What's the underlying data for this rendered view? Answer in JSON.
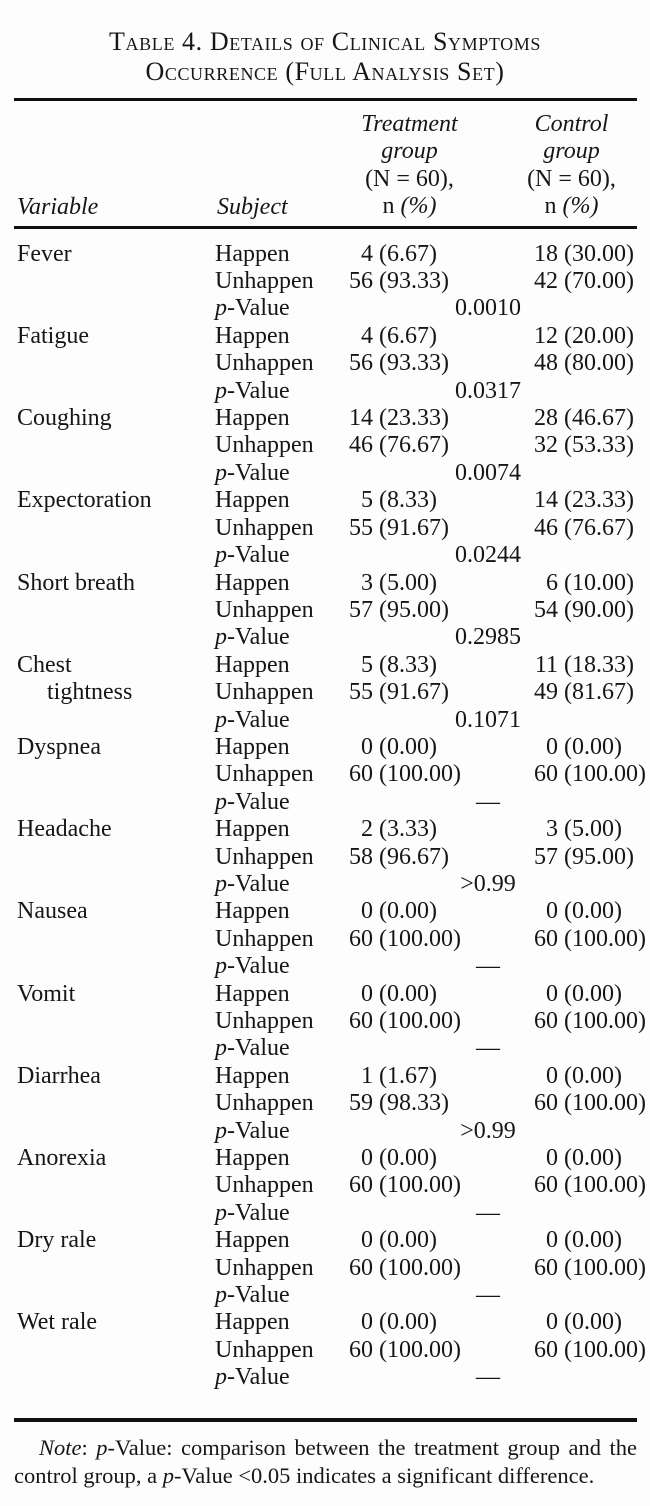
{
  "title": {
    "line1": "Table 4. Details of Clinical Symptoms",
    "line2": "Occurrence (Full Analysis Set)"
  },
  "columns": {
    "variable": "Variable",
    "subject": "Subject",
    "treatment": {
      "lines": [
        "Treatment",
        "group",
        "(N = 60),",
        "n (%)"
      ]
    },
    "control": {
      "lines": [
        "Control",
        "group",
        "(N = 60),",
        "n (%)"
      ]
    }
  },
  "subject_labels": {
    "happen": "Happen",
    "unhappen": "Unhappen",
    "p_value": "p-Value"
  },
  "rows": [
    {
      "name": [
        "Fever"
      ],
      "happen": {
        "treatment": [
          "4",
          "(6.67)"
        ],
        "control": [
          "18",
          "(30.00)"
        ]
      },
      "unhappen": {
        "treatment": [
          "56",
          "(93.33)"
        ],
        "control": [
          "42",
          "(70.00)"
        ]
      },
      "p_value": "0.0010"
    },
    {
      "name": [
        "Fatigue"
      ],
      "happen": {
        "treatment": [
          "4",
          "(6.67)"
        ],
        "control": [
          "12",
          "(20.00)"
        ]
      },
      "unhappen": {
        "treatment": [
          "56",
          "(93.33)"
        ],
        "control": [
          "48",
          "(80.00)"
        ]
      },
      "p_value": "0.0317"
    },
    {
      "name": [
        "Coughing"
      ],
      "happen": {
        "treatment": [
          "14",
          "(23.33)"
        ],
        "control": [
          "28",
          "(46.67)"
        ]
      },
      "unhappen": {
        "treatment": [
          "46",
          "(76.67)"
        ],
        "control": [
          "32",
          "(53.33)"
        ]
      },
      "p_value": "0.0074"
    },
    {
      "name": [
        "Expectoration"
      ],
      "happen": {
        "treatment": [
          "5",
          "(8.33)"
        ],
        "control": [
          "14",
          "(23.33)"
        ]
      },
      "unhappen": {
        "treatment": [
          "55",
          "(91.67)"
        ],
        "control": [
          "46",
          "(76.67)"
        ]
      },
      "p_value": "0.0244"
    },
    {
      "name": [
        "Short breath"
      ],
      "happen": {
        "treatment": [
          "3",
          "(5.00)"
        ],
        "control": [
          "6",
          "(10.00)"
        ]
      },
      "unhappen": {
        "treatment": [
          "57",
          "(95.00)"
        ],
        "control": [
          "54",
          "(90.00)"
        ]
      },
      "p_value": "0.2985"
    },
    {
      "name": [
        "Chest",
        "tightness"
      ],
      "happen": {
        "treatment": [
          "5",
          "(8.33)"
        ],
        "control": [
          "11",
          "(18.33)"
        ]
      },
      "unhappen": {
        "treatment": [
          "55",
          "(91.67)"
        ],
        "control": [
          "49",
          "(81.67)"
        ]
      },
      "p_value": "0.1071"
    },
    {
      "name": [
        "Dyspnea"
      ],
      "happen": {
        "treatment": [
          "0",
          "(0.00)"
        ],
        "control": [
          "0",
          "(0.00)"
        ]
      },
      "unhappen": {
        "treatment": [
          "60",
          "(100.00)"
        ],
        "control": [
          "60",
          "(100.00)"
        ]
      },
      "p_value": "—"
    },
    {
      "name": [
        "Headache"
      ],
      "happen": {
        "treatment": [
          "2",
          "(3.33)"
        ],
        "control": [
          "3",
          "(5.00)"
        ]
      },
      "unhappen": {
        "treatment": [
          "58",
          "(96.67)"
        ],
        "control": [
          "57",
          "(95.00)"
        ]
      },
      "p_value": ">0.99"
    },
    {
      "name": [
        "Nausea"
      ],
      "happen": {
        "treatment": [
          "0",
          "(0.00)"
        ],
        "control": [
          "0",
          "(0.00)"
        ]
      },
      "unhappen": {
        "treatment": [
          "60",
          "(100.00)"
        ],
        "control": [
          "60",
          "(100.00)"
        ]
      },
      "p_value": "—"
    },
    {
      "name": [
        "Vomit"
      ],
      "happen": {
        "treatment": [
          "0",
          "(0.00)"
        ],
        "control": [
          "0",
          "(0.00)"
        ]
      },
      "unhappen": {
        "treatment": [
          "60",
          "(100.00)"
        ],
        "control": [
          "60",
          "(100.00)"
        ]
      },
      "p_value": "—"
    },
    {
      "name": [
        "Diarrhea"
      ],
      "happen": {
        "treatment": [
          "1",
          "(1.67)"
        ],
        "control": [
          "0",
          "(0.00)"
        ]
      },
      "unhappen": {
        "treatment": [
          "59",
          "(98.33)"
        ],
        "control": [
          "60",
          "(100.00)"
        ]
      },
      "p_value": ">0.99"
    },
    {
      "name": [
        "Anorexia"
      ],
      "happen": {
        "treatment": [
          "0",
          "(0.00)"
        ],
        "control": [
          "0",
          "(0.00)"
        ]
      },
      "unhappen": {
        "treatment": [
          "60",
          "(100.00)"
        ],
        "control": [
          "60",
          "(100.00)"
        ]
      },
      "p_value": "—"
    },
    {
      "name": [
        "Dry rale"
      ],
      "happen": {
        "treatment": [
          "0",
          "(0.00)"
        ],
        "control": [
          "0",
          "(0.00)"
        ]
      },
      "unhappen": {
        "treatment": [
          "60",
          "(100.00)"
        ],
        "control": [
          "60",
          "(100.00)"
        ]
      },
      "p_value": "—"
    },
    {
      "name": [
        "Wet rale"
      ],
      "happen": {
        "treatment": [
          "0",
          "(0.00)"
        ],
        "control": [
          "0",
          "(0.00)"
        ]
      },
      "unhappen": {
        "treatment": [
          "60",
          "(100.00)"
        ],
        "control": [
          "60",
          "(100.00)"
        ]
      },
      "p_value": "—"
    }
  ],
  "note": "Note: p-Value: comparison between the treatment group and the control group, a p-Value <0.05 indicates a significant difference."
}
